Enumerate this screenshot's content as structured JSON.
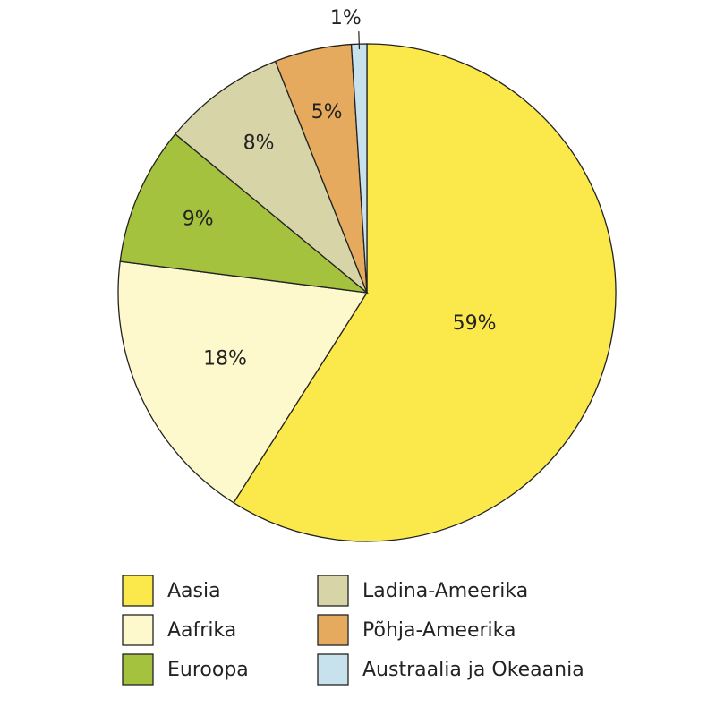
{
  "chart_data": {
    "type": "pie",
    "categories": [
      "Aasia",
      "Aafrika",
      "Euroopa",
      "Ladina-Ameerika",
      "Põhja-Ameerika",
      "Austraalia ja Okeaania"
    ],
    "values": [
      59,
      18,
      9,
      8,
      5,
      1
    ],
    "value_labels": [
      "59%",
      "18%",
      "9%",
      "8%",
      "5%",
      "1%"
    ],
    "colors": [
      "#fbe94b",
      "#fef9cc",
      "#a4c23d",
      "#d7d4a7",
      "#e6aa5e",
      "#c7e2ec"
    ]
  }
}
